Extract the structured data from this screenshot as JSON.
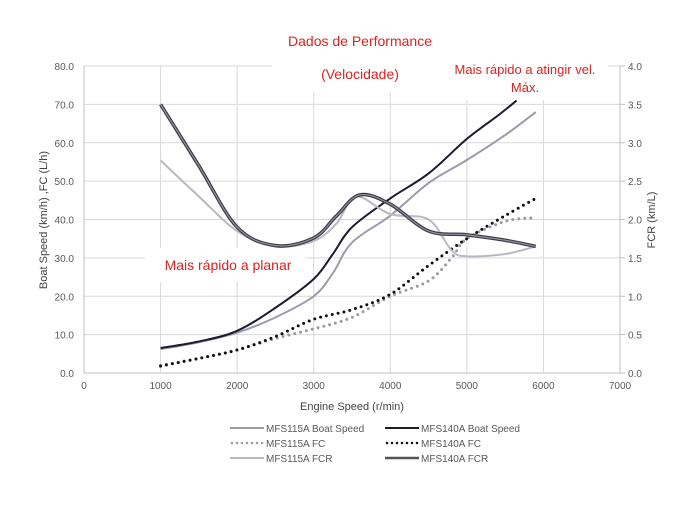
{
  "chart_data": {
    "type": "line",
    "title": "Dados de Performance",
    "subtitle": "(Velocidade)",
    "annotations": [
      "Mais rápido a planar",
      "Mais rápido a atingir vel.",
      "Máx."
    ],
    "xlabel": "Engine Speed (r/min)",
    "ylabel": "Boat Speed (km/h) ,FC (L/h)",
    "y2label": "FCR (km/L)",
    "xlim": [
      0,
      7000
    ],
    "ylim": [
      0,
      80
    ],
    "y2lim": [
      0,
      4
    ],
    "xticks": [
      "0",
      "1000",
      "2000",
      "3000",
      "4000",
      "5000",
      "6000",
      "7000"
    ],
    "yticks": [
      "0.0",
      "10.0",
      "20.0",
      "30.0",
      "40.0",
      "50.0",
      "60.0",
      "70.0",
      "80.0"
    ],
    "y2ticks": [
      "0.0",
      "0.5",
      "1.0",
      "1.5",
      "2.0",
      "2.5",
      "3.0",
      "3.5",
      "4.0"
    ],
    "grid": true,
    "legend_position": "bottom",
    "series": [
      {
        "name": "MFS115A Boat Speed",
        "axis": "left",
        "style": "solid",
        "color": "#9a9caa",
        "width": 2,
        "x": [
          1000,
          1500,
          2000,
          2500,
          3000,
          3250,
          3500,
          4000,
          4500,
          5000,
          5500,
          5900
        ],
        "y": [
          6.2,
          8,
          10.5,
          14.5,
          20,
          26,
          34,
          41,
          49.5,
          55.5,
          62,
          68
        ]
      },
      {
        "name": "MFS140A Boat Speed",
        "axis": "left",
        "style": "solid",
        "color": "#1a1a30",
        "width": 2,
        "x": [
          1000,
          1500,
          2000,
          2500,
          3000,
          3250,
          3500,
          4000,
          4500,
          5000,
          5400,
          5650
        ],
        "y": [
          6.5,
          8.2,
          11,
          17,
          24.5,
          31,
          38,
          45.5,
          52,
          61,
          67,
          71
        ]
      },
      {
        "name": "MFS115A FC",
        "axis": "left",
        "style": "dotted",
        "color": "#9a9aa6",
        "width": 3,
        "x": [
          1000,
          1500,
          2000,
          2500,
          3000,
          3500,
          4000,
          4500,
          4800,
          5000,
          5500,
          5900
        ],
        "y": [
          2,
          3.8,
          6,
          9,
          11.5,
          14.5,
          20,
          24,
          30,
          35,
          39.5,
          40.5
        ]
      },
      {
        "name": "MFS140A FC",
        "axis": "left",
        "style": "dotted",
        "color": "#111111",
        "width": 3,
        "x": [
          1000,
          1500,
          2000,
          2500,
          3000,
          3500,
          4000,
          4500,
          5000,
          5500,
          5900
        ],
        "y": [
          1.8,
          3.8,
          6,
          9.5,
          14,
          16.5,
          20.5,
          28,
          35,
          41,
          45.5
        ]
      },
      {
        "name": "MFS115A FCR",
        "axis": "right",
        "style": "solid",
        "color": "#b8b9c2",
        "width": 2,
        "x": [
          1000,
          1500,
          2000,
          2500,
          3000,
          3300,
          3550,
          4000,
          4500,
          4800,
          5000,
          5500,
          5900
        ],
        "y": [
          2.77,
          2.3,
          1.85,
          1.65,
          1.72,
          1.95,
          2.3,
          2.07,
          2.0,
          1.6,
          1.52,
          1.55,
          1.65
        ]
      },
      {
        "name": "MFS140A FCR",
        "axis": "right",
        "style": "solid",
        "color": "#6a6a72",
        "width": 2.5,
        "x": [
          1000,
          1500,
          2000,
          2500,
          3000,
          3300,
          3600,
          4000,
          4500,
          5000,
          5500,
          5900
        ],
        "y": [
          3.5,
          2.7,
          1.9,
          1.66,
          1.76,
          2.05,
          2.32,
          2.2,
          1.85,
          1.8,
          1.73,
          1.65
        ]
      }
    ]
  }
}
